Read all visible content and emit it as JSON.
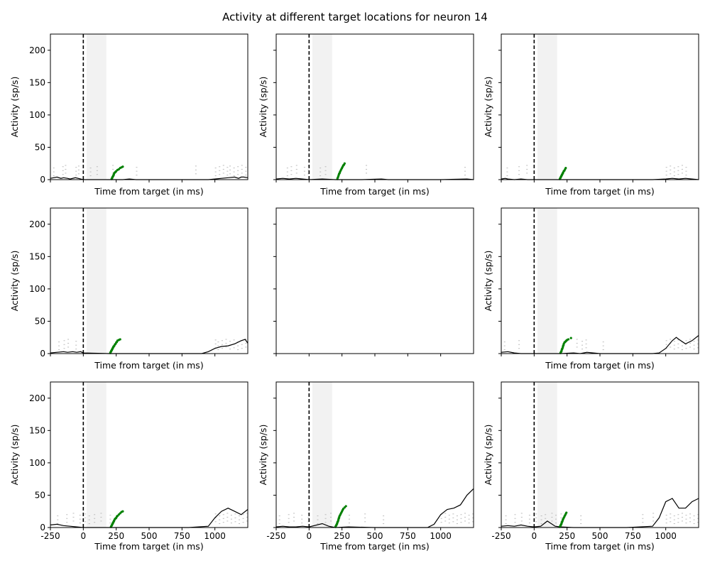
{
  "figure": {
    "title": "Activity at different target locations for neuron 14"
  },
  "colors": {
    "psth": "#000000",
    "raster": "#bbbbbb",
    "saccade": "#008000",
    "window": "#f2f2f2",
    "target_line": "#000000"
  },
  "chart_data": [
    {
      "type": "line",
      "panel": 1,
      "xlabel": "Time from target (in ms)",
      "ylabel": "Activity (sp/s)",
      "xlim": [
        -250,
        1250
      ],
      "ylim": [
        0,
        225
      ],
      "yticks": [
        0,
        50,
        100,
        150,
        200
      ],
      "xticks": [],
      "target_line_x": 0,
      "shaded_window": [
        25,
        175
      ],
      "psth": {
        "x": [
          -250,
          -200,
          -170,
          -150,
          -120,
          -100,
          -60,
          -20,
          0,
          100,
          200,
          300,
          350,
          400,
          500,
          750,
          950,
          1000,
          1050,
          1100,
          1150,
          1180,
          1200,
          1220,
          1250
        ],
        "y": [
          2,
          4,
          2,
          3,
          2,
          1,
          3,
          1,
          0,
          0,
          0,
          0,
          1,
          0,
          0,
          0,
          0,
          1,
          2,
          3,
          4,
          2,
          4,
          4,
          3
        ]
      },
      "raster_x": [
        -230,
        -160,
        -140,
        -60,
        -40,
        50,
        100,
        220,
        400,
        850,
        1000,
        1030,
        1060,
        1090,
        1110,
        1140,
        1170,
        1200,
        1230
      ],
      "saccade": {
        "x": [
          215,
          218,
          220,
          222,
          225,
          228,
          230,
          232,
          235,
          240,
          245,
          250,
          260,
          270,
          280,
          290,
          300
        ],
        "y": [
          1,
          2,
          3,
          4,
          5,
          6,
          7,
          8,
          10,
          11,
          12,
          13,
          15,
          16,
          18,
          19,
          20
        ]
      }
    },
    {
      "type": "line",
      "panel": 2,
      "xlabel": "Time from target (in ms)",
      "ylabel": "Activity (sp/s)",
      "xlim": [
        -250,
        1250
      ],
      "ylim": [
        0,
        225
      ],
      "yticks": [],
      "xticks": [],
      "target_line_x": 0,
      "shaded_window": [
        25,
        175
      ],
      "psth": {
        "x": [
          -250,
          -200,
          -150,
          -100,
          -50,
          0,
          100,
          200,
          300,
          400,
          550,
          600,
          800,
          1000,
          1200,
          1250
        ],
        "y": [
          1,
          2,
          1,
          2,
          1,
          0,
          1,
          0,
          0,
          0,
          1,
          0,
          0,
          0,
          1,
          0
        ]
      },
      "raster_x": [
        -170,
        -140,
        -100,
        -40,
        -10,
        80,
        120,
        430,
        1180
      ],
      "saccade": {
        "x": [
          215,
          218,
          222,
          225,
          228,
          232,
          235,
          240,
          245,
          250,
          255,
          260,
          265,
          270
        ],
        "y": [
          1,
          3,
          5,
          7,
          9,
          10,
          12,
          14,
          16,
          18,
          20,
          22,
          23,
          25
        ]
      }
    },
    {
      "type": "line",
      "panel": 3,
      "xlabel": "Time from target (in ms)",
      "ylabel": "Activity (sp/s)",
      "xlim": [
        -250,
        1250
      ],
      "ylim": [
        0,
        225
      ],
      "yticks": [],
      "xticks": [],
      "target_line_x": 0,
      "shaded_window": [
        25,
        175
      ],
      "psth": {
        "x": [
          -250,
          -220,
          -200,
          -150,
          -100,
          -50,
          0,
          200,
          400,
          900,
          1000,
          1050,
          1100,
          1150,
          1200,
          1250
        ],
        "y": [
          1,
          2,
          1,
          0,
          1,
          0,
          0,
          0,
          0,
          0,
          1,
          2,
          1,
          2,
          1,
          0
        ]
      },
      "raster_x": [
        -210,
        -120,
        -60,
        1000,
        1030,
        1060,
        1090,
        1120,
        1150
      ],
      "saccade": {
        "x": [
          195,
          198,
          200,
          203,
          205,
          208,
          210,
          213,
          215,
          218,
          220,
          225,
          230,
          235,
          240
        ],
        "y": [
          1,
          2,
          3,
          4,
          5,
          6,
          7,
          8,
          9,
          10,
          11,
          13,
          14,
          16,
          18
        ]
      }
    },
    {
      "type": "line",
      "panel": 4,
      "xlabel": "Time from target (in ms)",
      "ylabel": "Activity (sp/s)",
      "xlim": [
        -250,
        1250
      ],
      "ylim": [
        0,
        225
      ],
      "yticks": [
        0,
        50,
        100,
        150,
        200
      ],
      "xticks": [],
      "target_line_x": 0,
      "shaded_window": [
        25,
        175
      ],
      "psth": {
        "x": [
          -250,
          -200,
          -150,
          -120,
          -80,
          -50,
          -20,
          0,
          200,
          500,
          750,
          900,
          950,
          1000,
          1050,
          1100,
          1150,
          1200,
          1230,
          1250
        ],
        "y": [
          1,
          2,
          3,
          2,
          3,
          2,
          3,
          1,
          0,
          0,
          0,
          0,
          3,
          8,
          11,
          12,
          15,
          20,
          22,
          16
        ]
      },
      "raster_x": [
        -190,
        -150,
        -120,
        -60,
        1000,
        1020,
        1050,
        1080,
        1110,
        1140,
        1170,
        1200,
        1230
      ],
      "saccade": {
        "x": [
          205,
          207,
          210,
          212,
          215,
          218,
          220,
          223,
          225,
          228,
          230,
          235,
          240,
          245,
          250,
          255,
          260,
          270,
          280
        ],
        "y": [
          1,
          2,
          3,
          4,
          5,
          6,
          7,
          8,
          9,
          10,
          11,
          12,
          14,
          15,
          17,
          18,
          20,
          21,
          22
        ]
      }
    },
    {
      "type": "line",
      "panel": 5,
      "xlabel": "",
      "ylabel": "",
      "xlim": [
        -250,
        1250
      ],
      "ylim": [
        0,
        225
      ],
      "yticks": [],
      "xticks": [],
      "empty": true,
      "psth": {
        "x": [],
        "y": []
      },
      "raster_x": [],
      "saccade": {
        "x": [],
        "y": []
      }
    },
    {
      "type": "line",
      "panel": 6,
      "xlabel": "Time from target (in ms)",
      "ylabel": "Activity (sp/s)",
      "xlim": [
        -250,
        1250
      ],
      "ylim": [
        0,
        225
      ],
      "yticks": [],
      "xticks": [],
      "target_line_x": 0,
      "shaded_window": [
        25,
        175
      ],
      "psth": {
        "x": [
          -250,
          -200,
          -150,
          -100,
          0,
          200,
          300,
          350,
          400,
          500,
          900,
          950,
          1000,
          1050,
          1080,
          1100,
          1150,
          1200,
          1250
        ],
        "y": [
          2,
          3,
          1,
          0,
          0,
          0,
          1,
          0,
          2,
          0,
          0,
          1,
          8,
          20,
          25,
          22,
          15,
          20,
          28
        ]
      },
      "raster_x": [
        -230,
        -120,
        320,
        360,
        390,
        520,
        1000,
        1030,
        1060,
        1090,
        1120,
        1150,
        1180,
        1210,
        1240
      ],
      "saccade": {
        "x": [
          200,
          203,
          205,
          208,
          210,
          212,
          215,
          218,
          220,
          223,
          225,
          230,
          235,
          240,
          245,
          250,
          260,
          280
        ],
        "y": [
          1,
          2,
          3,
          4,
          6,
          7,
          8,
          10,
          12,
          13,
          15,
          17,
          18,
          19,
          20,
          21,
          22,
          24
        ]
      }
    },
    {
      "type": "line",
      "panel": 7,
      "xlabel": "Time from target (in ms)",
      "ylabel": "Activity (sp/s)",
      "xlim": [
        -250,
        1250
      ],
      "ylim": [
        0,
        225
      ],
      "yticks": [
        0,
        50,
        100,
        150,
        200
      ],
      "xticks": [
        -250,
        0,
        250,
        500,
        750,
        1000
      ],
      "target_line_x": 0,
      "shaded_window": [
        25,
        175
      ],
      "psth": {
        "x": [
          -250,
          -200,
          -150,
          -100,
          -50,
          0,
          200,
          500,
          800,
          950,
          1000,
          1050,
          1100,
          1150,
          1200,
          1250
        ],
        "y": [
          4,
          5,
          3,
          2,
          1,
          0,
          0,
          0,
          0,
          2,
          15,
          25,
          30,
          25,
          20,
          28
        ]
      },
      "raster_x": [
        -200,
        -130,
        -80,
        -30,
        10,
        40,
        80,
        130,
        200,
        1000,
        1030,
        1060,
        1090,
        1120,
        1150,
        1180,
        1210,
        1240
      ],
      "saccade": {
        "x": [
          210,
          213,
          215,
          218,
          220,
          223,
          225,
          228,
          230,
          233,
          235,
          240,
          245,
          250,
          255,
          260,
          270,
          280,
          290,
          300
        ],
        "y": [
          1,
          2,
          3,
          4,
          5,
          6,
          7,
          8,
          9,
          10,
          11,
          13,
          14,
          15,
          17,
          18,
          20,
          22,
          24,
          25
        ]
      }
    },
    {
      "type": "line",
      "panel": 8,
      "xlabel": "Time from target (in ms)",
      "ylabel": "Activity (sp/s)",
      "xlim": [
        -250,
        1250
      ],
      "ylim": [
        0,
        225
      ],
      "yticks": [],
      "xticks": [
        -250,
        0,
        250,
        500,
        750,
        1000
      ],
      "target_line_x": 0,
      "shaded_window": [
        25,
        175
      ],
      "psth": {
        "x": [
          -250,
          -200,
          -150,
          -100,
          -50,
          0,
          100,
          150,
          200,
          300,
          500,
          700,
          900,
          950,
          1000,
          1050,
          1100,
          1150,
          1200,
          1250
        ],
        "y": [
          1,
          2,
          1,
          1,
          2,
          1,
          6,
          2,
          0,
          1,
          0,
          0,
          0,
          5,
          20,
          28,
          30,
          35,
          50,
          60
        ]
      },
      "raster_x": [
        -230,
        -160,
        -120,
        -60,
        -10,
        60,
        120,
        160,
        300,
        420,
        560,
        1000,
        1030,
        1060,
        1090,
        1120,
        1150,
        1180,
        1210,
        1240
      ],
      "saccade": {
        "x": [
          200,
          203,
          205,
          208,
          210,
          213,
          215,
          218,
          220,
          223,
          225,
          228,
          230,
          235,
          240,
          245,
          250,
          255,
          260,
          270,
          280
        ],
        "y": [
          1,
          2,
          3,
          4,
          5,
          6,
          8,
          9,
          10,
          12,
          14,
          15,
          17,
          19,
          21,
          23,
          25,
          27,
          29,
          31,
          33
        ]
      }
    },
    {
      "type": "line",
      "panel": 9,
      "xlabel": "Time from target (in ms)",
      "ylabel": "Activity (sp/s)",
      "xlim": [
        -250,
        1250
      ],
      "ylim": [
        0,
        225
      ],
      "yticks": [],
      "xticks": [
        -250,
        0,
        250,
        500,
        750,
        1000
      ],
      "target_line_x": 0,
      "shaded_window": [
        25,
        175
      ],
      "psth": {
        "x": [
          -250,
          -200,
          -150,
          -100,
          -50,
          0,
          50,
          100,
          130,
          160,
          200,
          300,
          500,
          700,
          900,
          950,
          1000,
          1050,
          1100,
          1150,
          1200,
          1250
        ],
        "y": [
          2,
          3,
          2,
          4,
          2,
          1,
          2,
          10,
          6,
          2,
          1,
          0,
          0,
          0,
          2,
          15,
          40,
          45,
          30,
          30,
          40,
          45
        ]
      },
      "raster_x": [
        -220,
        -150,
        -100,
        -40,
        10,
        50,
        80,
        130,
        160,
        200,
        350,
        820,
        900,
        1000,
        1030,
        1060,
        1090,
        1120,
        1150,
        1180,
        1210,
        1240
      ],
      "saccade": {
        "x": [
          195,
          198,
          200,
          203,
          205,
          208,
          210,
          213,
          215,
          218,
          220,
          225,
          230,
          235,
          240,
          245
        ],
        "y": [
          1,
          2,
          3,
          4,
          5,
          6,
          8,
          9,
          10,
          12,
          13,
          15,
          17,
          19,
          21,
          23
        ]
      }
    }
  ]
}
